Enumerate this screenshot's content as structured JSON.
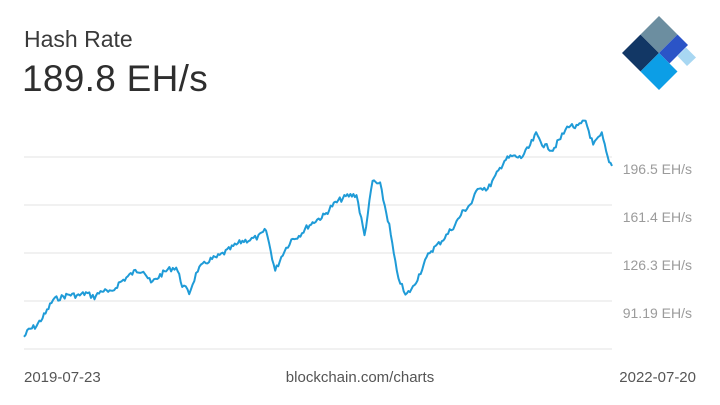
{
  "header": {
    "title": "Hash Rate",
    "current_value": "189.8 EH/s"
  },
  "footer": {
    "start_date": "2019-07-23",
    "source": "blockchain.com/charts",
    "end_date": "2022-07-20"
  },
  "logo": {
    "icon": "blockchain-logo-icon",
    "colors": [
      "#123765",
      "#6c8ea0",
      "#2b54c7",
      "#0c9ee6",
      "#a8d7f2"
    ]
  },
  "chart_data": {
    "type": "line",
    "title": "Hash Rate",
    "unit": "EH/s",
    "x_start": "2019-07-23",
    "x_end": "2022-07-20",
    "y_ticks": [
      {
        "value": 91.19,
        "label": "91.19 EH/s"
      },
      {
        "value": 126.3,
        "label": "126.3 EH/s"
      },
      {
        "value": 161.4,
        "label": "161.4 EH/s"
      },
      {
        "value": 196.5,
        "label": "196.5 EH/s"
      }
    ],
    "ylim": [
      56.1,
      213.5
    ],
    "grid": true,
    "line_color": "#1f9bd7",
    "series": [
      {
        "values": [
          [
            "2019-07-23",
            65
          ],
          [
            "2019-08-01",
            70
          ],
          [
            "2019-08-15",
            73
          ],
          [
            "2019-09-01",
            82
          ],
          [
            "2019-09-15",
            92
          ],
          [
            "2019-10-01",
            94
          ],
          [
            "2019-10-15",
            96
          ],
          [
            "2019-11-01",
            95
          ],
          [
            "2019-11-15",
            97
          ],
          [
            "2019-12-01",
            94
          ],
          [
            "2019-12-15",
            99
          ],
          [
            "2020-01-01",
            97
          ],
          [
            "2020-01-15",
            104
          ],
          [
            "2020-02-01",
            109
          ],
          [
            "2020-02-15",
            113
          ],
          [
            "2020-03-01",
            114
          ],
          [
            "2020-03-15",
            104
          ],
          [
            "2020-04-01",
            110
          ],
          [
            "2020-04-15",
            114
          ],
          [
            "2020-05-01",
            116
          ],
          [
            "2020-05-12",
            103
          ],
          [
            "2020-05-25",
            97
          ],
          [
            "2020-06-10",
            114
          ],
          [
            "2020-07-01",
            121
          ],
          [
            "2020-07-15",
            123
          ],
          [
            "2020-08-01",
            127
          ],
          [
            "2020-08-15",
            131
          ],
          [
            "2020-09-01",
            135
          ],
          [
            "2020-09-15",
            136
          ],
          [
            "2020-10-01",
            138
          ],
          [
            "2020-10-15",
            143
          ],
          [
            "2020-11-01",
            113
          ],
          [
            "2020-11-15",
            126
          ],
          [
            "2020-12-01",
            136
          ],
          [
            "2020-12-15",
            139
          ],
          [
            "2021-01-01",
            146
          ],
          [
            "2021-01-15",
            150
          ],
          [
            "2021-02-01",
            154
          ],
          [
            "2021-02-15",
            161
          ],
          [
            "2021-03-01",
            165
          ],
          [
            "2021-03-15",
            168
          ],
          [
            "2021-04-01",
            169
          ],
          [
            "2021-04-16",
            139
          ],
          [
            "2021-05-01",
            179
          ],
          [
            "2021-05-15",
            176
          ],
          [
            "2021-06-01",
            146
          ],
          [
            "2021-06-15",
            112
          ],
          [
            "2021-07-01",
            95
          ],
          [
            "2021-07-15",
            101
          ],
          [
            "2021-08-01",
            115
          ],
          [
            "2021-08-15",
            127
          ],
          [
            "2021-09-01",
            133
          ],
          [
            "2021-09-15",
            139
          ],
          [
            "2021-10-01",
            147
          ],
          [
            "2021-10-15",
            156
          ],
          [
            "2021-11-01",
            163
          ],
          [
            "2021-11-15",
            175
          ],
          [
            "2021-12-01",
            173
          ],
          [
            "2021-12-15",
            182
          ],
          [
            "2022-01-01",
            194
          ],
          [
            "2022-01-15",
            197
          ],
          [
            "2022-02-01",
            196
          ],
          [
            "2022-02-15",
            203
          ],
          [
            "2022-03-01",
            213
          ],
          [
            "2022-03-15",
            205
          ],
          [
            "2022-04-01",
            202
          ],
          [
            "2022-04-15",
            210
          ],
          [
            "2022-05-01",
            220
          ],
          [
            "2022-05-15",
            218
          ],
          [
            "2022-06-01",
            223
          ],
          [
            "2022-06-15",
            205
          ],
          [
            "2022-07-01",
            213
          ],
          [
            "2022-07-12",
            196
          ],
          [
            "2022-07-20",
            190
          ]
        ]
      }
    ]
  }
}
